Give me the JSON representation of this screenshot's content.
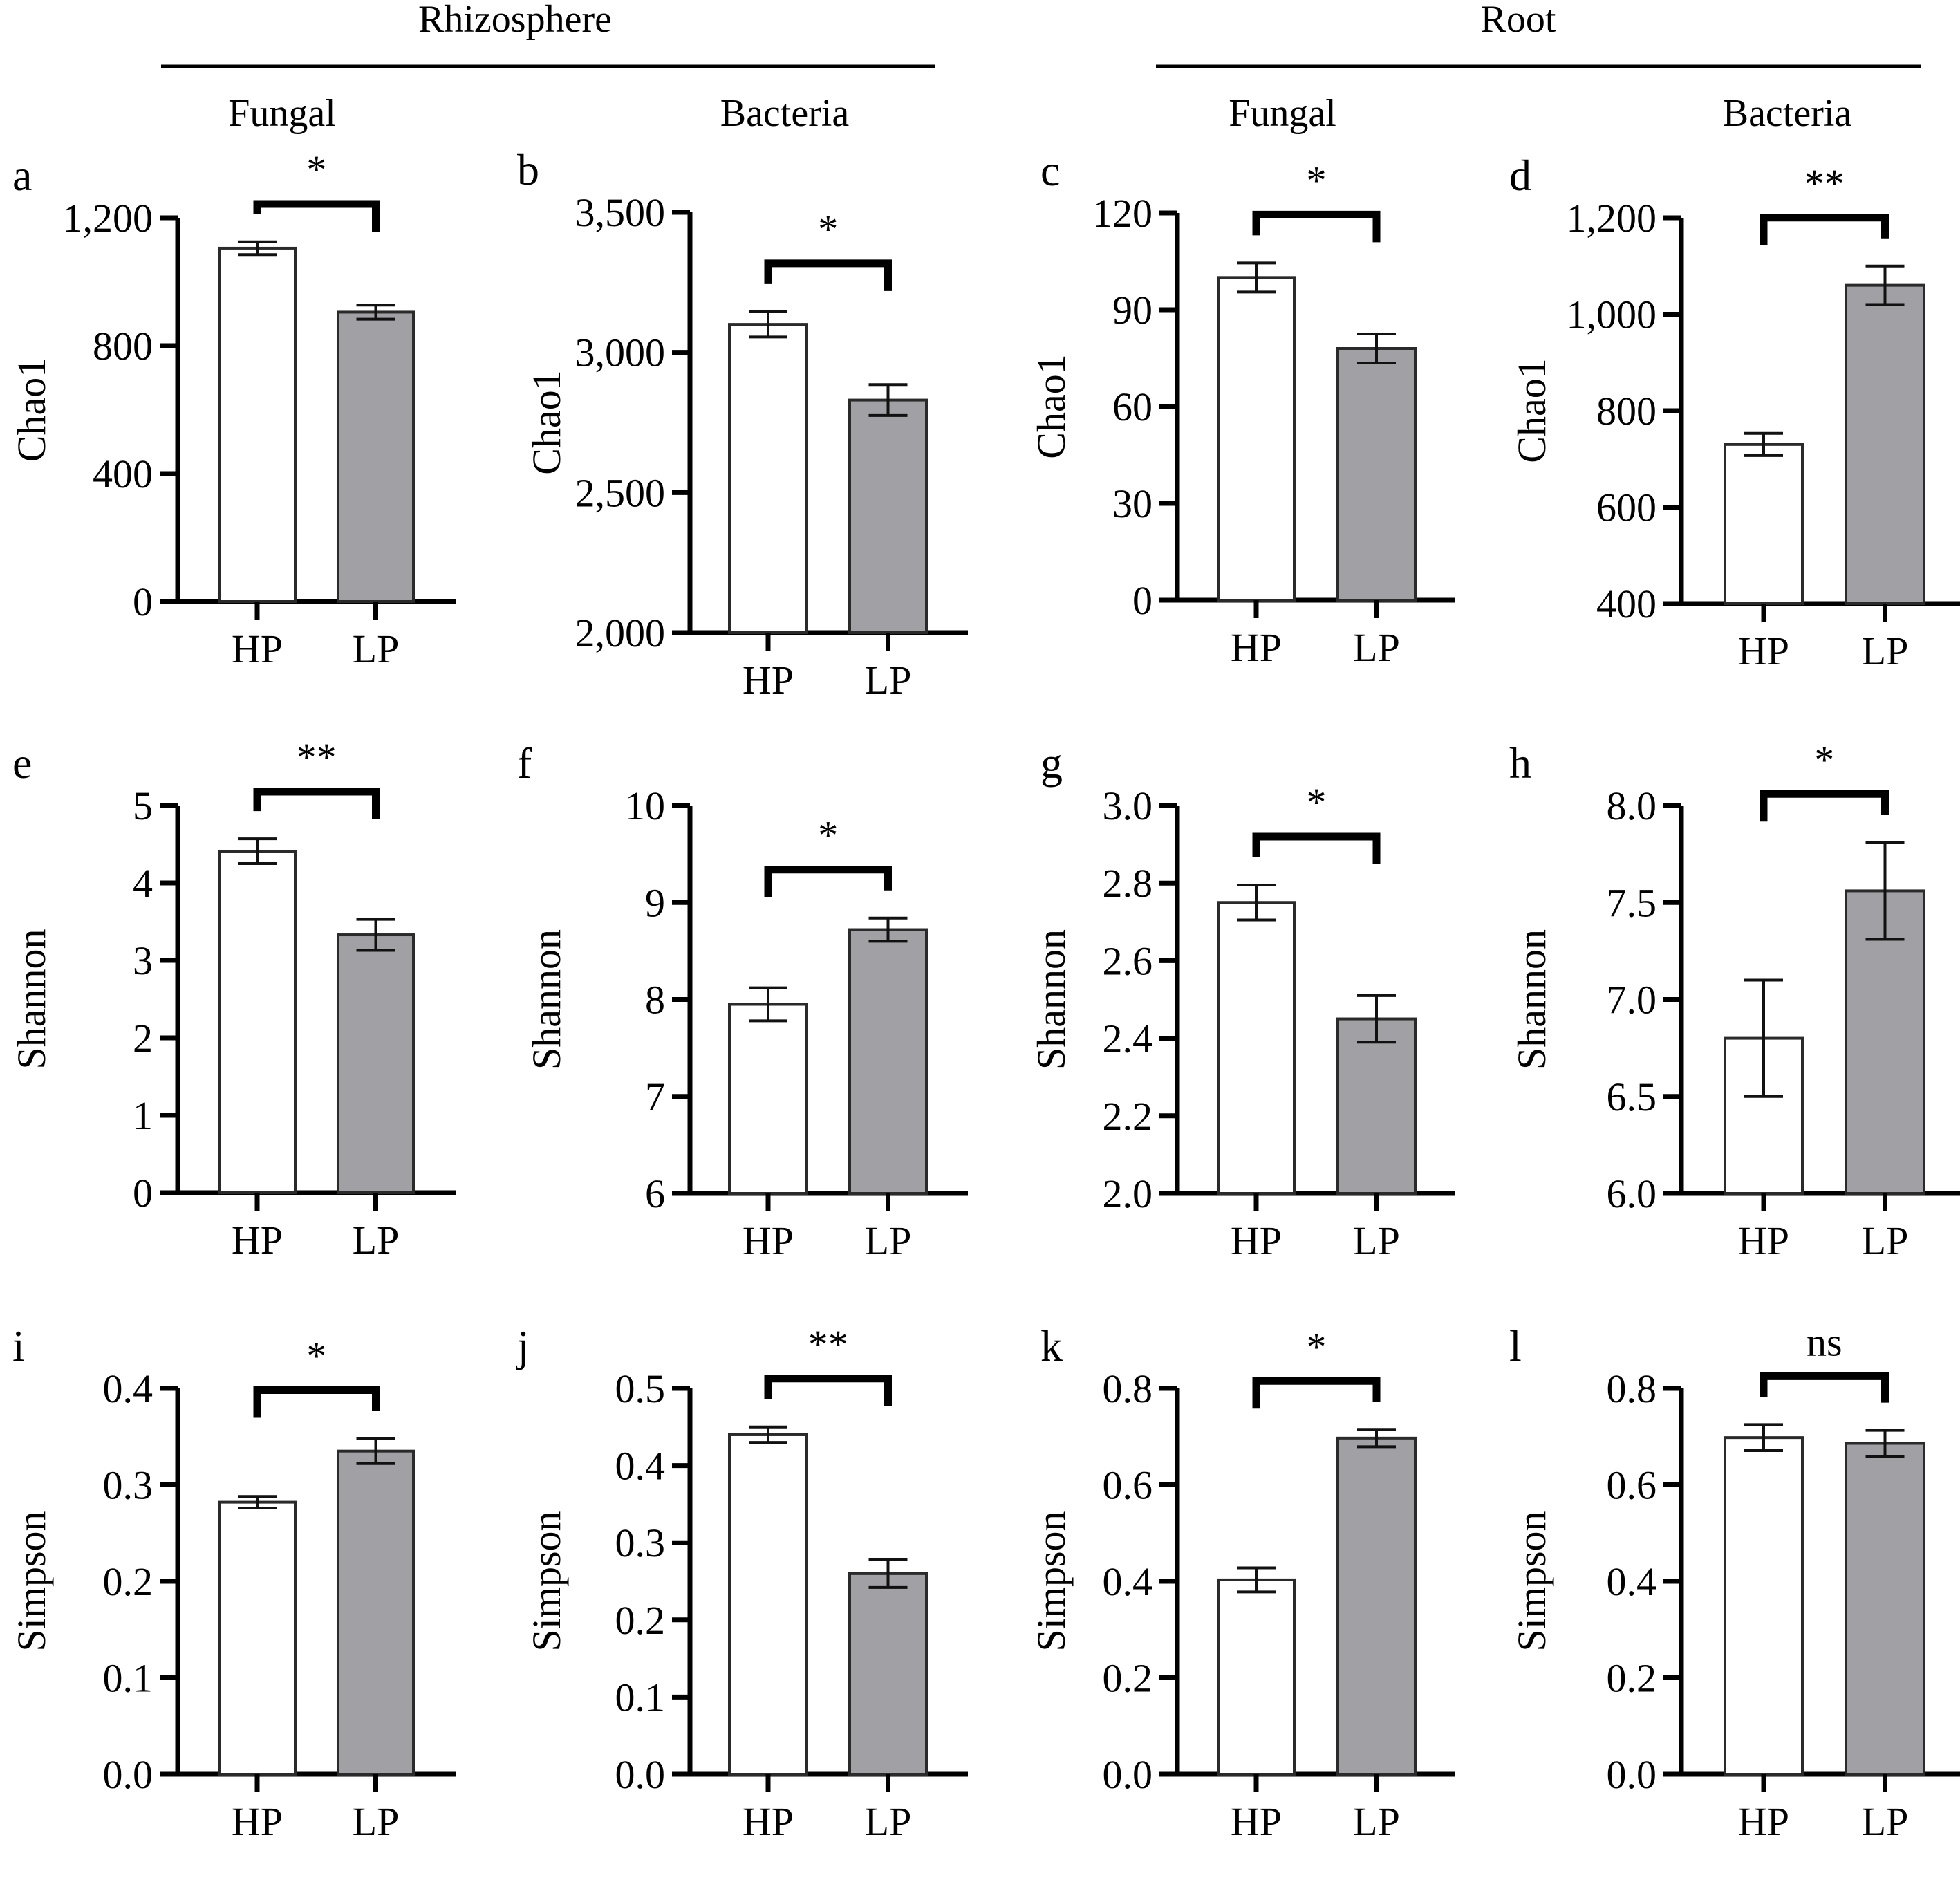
{
  "header": {
    "groups": [
      {
        "label": "Rhizosphere",
        "columns": [
          "Fungal",
          "Bacteria"
        ]
      },
      {
        "label": "Root",
        "columns": [
          "Fungal",
          "Bacteria"
        ]
      }
    ]
  },
  "colors": {
    "HP": "#ffffff",
    "LP": "#a1a1a5",
    "stroke": "#000000"
  },
  "chart_data": [
    {
      "panel": "a",
      "type": "bar",
      "compartment": "Rhizosphere",
      "group": "Fungal",
      "ylabel": "Chao1",
      "categories": [
        "HP",
        "LP"
      ],
      "values": [
        1105,
        905
      ],
      "errors": [
        20,
        22
      ],
      "ylim": [
        0,
        1200
      ],
      "yticks": [
        0,
        400,
        800,
        1200
      ],
      "ytick_labels": [
        "0",
        "400",
        "800",
        "1,200"
      ],
      "significance": "*"
    },
    {
      "panel": "b",
      "type": "bar",
      "compartment": "Rhizosphere",
      "group": "Bacteria",
      "ylabel": "Chao1",
      "categories": [
        "HP",
        "LP"
      ],
      "values": [
        3100,
        2830
      ],
      "errors": [
        45,
        55
      ],
      "ylim": [
        2000,
        3500
      ],
      "yticks": [
        2000,
        2500,
        3000,
        3500
      ],
      "ytick_labels": [
        "2,000",
        "2,500",
        "3,000",
        "3,500"
      ],
      "significance": "*"
    },
    {
      "panel": "c",
      "type": "bar",
      "compartment": "Root",
      "group": "Fungal",
      "ylabel": "Chao1",
      "categories": [
        "HP",
        "LP"
      ],
      "values": [
        100,
        78
      ],
      "errors": [
        4.5,
        4.5
      ],
      "ylim": [
        0,
        120
      ],
      "yticks": [
        0,
        30,
        60,
        90,
        120
      ],
      "ytick_labels": [
        "0",
        "30",
        "60",
        "90",
        "120"
      ],
      "significance": "*"
    },
    {
      "panel": "d",
      "type": "bar",
      "compartment": "Root",
      "group": "Bacteria",
      "ylabel": "Chao1",
      "categories": [
        "HP",
        "LP"
      ],
      "values": [
        730,
        1060
      ],
      "errors": [
        23,
        40
      ],
      "ylim": [
        400,
        1200
      ],
      "yticks": [
        400,
        600,
        800,
        1000,
        1200
      ],
      "ytick_labels": [
        "400",
        "600",
        "800",
        "1,000",
        "1,200"
      ],
      "significance": "**"
    },
    {
      "panel": "e",
      "type": "bar",
      "compartment": "Rhizosphere",
      "group": "Fungal",
      "ylabel": "Shannon",
      "categories": [
        "HP",
        "LP"
      ],
      "values": [
        4.41,
        3.33
      ],
      "errors": [
        0.16,
        0.2
      ],
      "ylim": [
        0,
        5
      ],
      "yticks": [
        0,
        1,
        2,
        3,
        4,
        5
      ],
      "ytick_labels": [
        "0",
        "1",
        "2",
        "3",
        "4",
        "5"
      ],
      "significance": "**"
    },
    {
      "panel": "f",
      "type": "bar",
      "compartment": "Rhizosphere",
      "group": "Bacteria",
      "ylabel": "Shannon",
      "categories": [
        "HP",
        "LP"
      ],
      "values": [
        7.95,
        8.72
      ],
      "errors": [
        0.17,
        0.12
      ],
      "ylim": [
        6,
        10
      ],
      "yticks": [
        6,
        7,
        8,
        9,
        10
      ],
      "ytick_labels": [
        "6",
        "7",
        "8",
        "9",
        "10"
      ],
      "significance": "*"
    },
    {
      "panel": "g",
      "type": "bar",
      "compartment": "Root",
      "group": "Fungal",
      "ylabel": "Shannon",
      "categories": [
        "HP",
        "LP"
      ],
      "values": [
        2.75,
        2.45
      ],
      "errors": [
        0.045,
        0.06
      ],
      "ylim": [
        2.0,
        3.0
      ],
      "yticks": [
        2.0,
        2.2,
        2.4,
        2.6,
        2.8,
        3.0
      ],
      "ytick_labels": [
        "2.0",
        "2.2",
        "2.4",
        "2.6",
        "2.8",
        "3.0"
      ],
      "significance": "*"
    },
    {
      "panel": "h",
      "type": "bar",
      "compartment": "Root",
      "group": "Bacteria",
      "ylabel": "Shannon",
      "categories": [
        "HP",
        "LP"
      ],
      "values": [
        6.8,
        7.56
      ],
      "errors": [
        0.3,
        0.25
      ],
      "ylim": [
        6.0,
        8.0
      ],
      "yticks": [
        6.0,
        6.5,
        7.0,
        7.5,
        8.0
      ],
      "ytick_labels": [
        "6.0",
        "6.5",
        "7.0",
        "7.5",
        "8.0"
      ],
      "significance": "*"
    },
    {
      "panel": "i",
      "type": "bar",
      "compartment": "Rhizosphere",
      "group": "Fungal",
      "ylabel": "Simpson",
      "categories": [
        "HP",
        "LP"
      ],
      "values": [
        0.282,
        0.335
      ],
      "errors": [
        0.006,
        0.013
      ],
      "ylim": [
        0,
        0.4
      ],
      "yticks": [
        0,
        0.1,
        0.2,
        0.3,
        0.4
      ],
      "ytick_labels": [
        "0.0",
        "0.1",
        "0.2",
        "0.3",
        "0.4"
      ],
      "significance": "*"
    },
    {
      "panel": "j",
      "type": "bar",
      "compartment": "Rhizosphere",
      "group": "Bacteria",
      "ylabel": "Simpson",
      "categories": [
        "HP",
        "LP"
      ],
      "values": [
        0.44,
        0.26
      ],
      "errors": [
        0.01,
        0.018
      ],
      "ylim": [
        0,
        0.5
      ],
      "yticks": [
        0,
        0.1,
        0.2,
        0.3,
        0.4,
        0.5
      ],
      "ytick_labels": [
        "0.0",
        "0.1",
        "0.2",
        "0.3",
        "0.4",
        "0.5"
      ],
      "significance": "**"
    },
    {
      "panel": "k",
      "type": "bar",
      "compartment": "Root",
      "group": "Fungal",
      "ylabel": "Simpson",
      "categories": [
        "HP",
        "LP"
      ],
      "values": [
        0.403,
        0.697
      ],
      "errors": [
        0.025,
        0.018
      ],
      "ylim": [
        0,
        0.8
      ],
      "yticks": [
        0,
        0.2,
        0.4,
        0.6,
        0.8
      ],
      "ytick_labels": [
        "0.0",
        "0.2",
        "0.4",
        "0.6",
        "0.8"
      ],
      "significance": "*"
    },
    {
      "panel": "l",
      "type": "bar",
      "compartment": "Root",
      "group": "Bacteria",
      "ylabel": "Simpson",
      "categories": [
        "HP",
        "LP"
      ],
      "values": [
        0.698,
        0.686
      ],
      "errors": [
        0.027,
        0.027
      ],
      "ylim": [
        0,
        0.8
      ],
      "yticks": [
        0,
        0.2,
        0.4,
        0.6,
        0.8
      ],
      "ytick_labels": [
        "0.0",
        "0.2",
        "0.4",
        "0.6",
        "0.8"
      ],
      "significance": "ns"
    }
  ]
}
